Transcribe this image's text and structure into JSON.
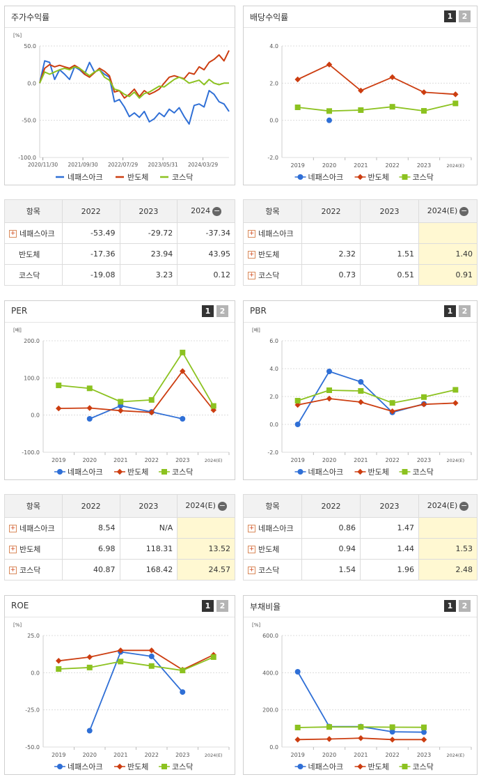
{
  "colors": {
    "nepes": "#2f6fd6",
    "semi": "#cc3d10",
    "kosdaq": "#8cc220"
  },
  "buttons": {
    "b1": "1",
    "b2": "2"
  },
  "legend": [
    "네패스아크",
    "반도체",
    "코스닥"
  ],
  "charts": {
    "stock": {
      "title": "주가수익률",
      "unit": "[%]",
      "type": "line",
      "ylim": [
        -100,
        50
      ],
      "yticks": [
        "50.0",
        "0.0",
        "-50.0",
        "-100.0"
      ],
      "xticks": [
        "2020/11/30",
        "2021/09/30",
        "2022/07/29",
        "2023/05/31",
        "2024/03/29"
      ],
      "series": [
        {
          "name": "네패스아크",
          "values": [
            0,
            30,
            28,
            5,
            18,
            12,
            5,
            22,
            18,
            12,
            28,
            15,
            18,
            12,
            8,
            -25,
            -22,
            -32,
            -45,
            -40,
            -46,
            -38,
            -52,
            -48,
            -40,
            -45,
            -35,
            -40,
            -33,
            -45,
            -55,
            -30,
            -28,
            -32,
            -10,
            -15,
            -25,
            -28,
            -38
          ]
        },
        {
          "name": "반도체",
          "values": [
            0,
            20,
            25,
            22,
            24,
            22,
            20,
            24,
            20,
            12,
            8,
            14,
            20,
            16,
            10,
            -12,
            -10,
            -20,
            -15,
            -8,
            -18,
            -10,
            -15,
            -12,
            -8,
            0,
            8,
            10,
            8,
            6,
            14,
            12,
            22,
            18,
            28,
            32,
            38,
            30,
            44
          ]
        },
        {
          "name": "코스닥",
          "values": [
            0,
            15,
            12,
            15,
            18,
            20,
            18,
            22,
            20,
            15,
            10,
            15,
            18,
            8,
            4,
            -8,
            -10,
            -15,
            -18,
            -12,
            -20,
            -14,
            -12,
            -8,
            -4,
            -5,
            0,
            5,
            8,
            5,
            0,
            2,
            4,
            -2,
            5,
            0,
            -2,
            0,
            0
          ]
        }
      ]
    },
    "dividend": {
      "title": "배당수익률",
      "type": "line",
      "ylim": [
        -2,
        4
      ],
      "yticks": [
        "4.0",
        "2.0",
        "0.0",
        "-2.0"
      ],
      "categories": [
        "2019",
        "2020",
        "2021",
        "2022",
        "2023",
        "2024(E)"
      ],
      "series": [
        {
          "name": "네패스아크",
          "values": [
            null,
            0.0,
            null,
            null,
            null,
            null
          ]
        },
        {
          "name": "반도체",
          "values": [
            2.2,
            3.0,
            1.6,
            2.32,
            1.51,
            1.4
          ]
        },
        {
          "name": "코스닥",
          "values": [
            0.7,
            0.5,
            0.55,
            0.73,
            0.51,
            0.91
          ]
        }
      ]
    },
    "per": {
      "title": "PER",
      "unit": "[배]",
      "type": "line",
      "ylim": [
        -100,
        200
      ],
      "yticks": [
        "200.0",
        "100.0",
        "0.0",
        "-100.0"
      ],
      "categories": [
        "2019",
        "2020",
        "2021",
        "2022",
        "2023",
        "2024(E)"
      ],
      "series": [
        {
          "name": "네패스아크",
          "values": [
            null,
            -10,
            25,
            8.54,
            -10,
            null
          ]
        },
        {
          "name": "반도체",
          "values": [
            18,
            19,
            12,
            6.98,
            118.31,
            13.52
          ]
        },
        {
          "name": "코스닥",
          "values": [
            80,
            72,
            36,
            40.87,
            168.42,
            24.57
          ]
        }
      ]
    },
    "pbr": {
      "title": "PBR",
      "unit": "[배]",
      "type": "line",
      "ylim": [
        -2,
        6
      ],
      "yticks": [
        "6.0",
        "4.0",
        "2.0",
        "0.0",
        "-2.0"
      ],
      "categories": [
        "2019",
        "2020",
        "2021",
        "2022",
        "2023",
        "2024(E)"
      ],
      "series": [
        {
          "name": "네패스아크",
          "values": [
            0.0,
            3.8,
            3.05,
            0.86,
            1.47,
            null
          ]
        },
        {
          "name": "반도체",
          "values": [
            1.4,
            1.85,
            1.6,
            0.94,
            1.44,
            1.53
          ]
        },
        {
          "name": "코스닥",
          "values": [
            1.7,
            2.45,
            2.4,
            1.54,
            1.96,
            2.48
          ]
        }
      ]
    },
    "roe": {
      "title": "ROE",
      "unit": "[%]",
      "type": "line",
      "ylim": [
        -50,
        25
      ],
      "yticks": [
        "25.0",
        "0.0",
        "-25.0",
        "-50.0"
      ],
      "categories": [
        "2019",
        "2020",
        "2021",
        "2022",
        "2023",
        "2024(E)"
      ],
      "series": [
        {
          "name": "네패스아크",
          "values": [
            null,
            -39,
            14,
            11,
            -13,
            null
          ]
        },
        {
          "name": "반도체",
          "values": [
            8,
            10.5,
            15,
            15,
            2,
            12
          ]
        },
        {
          "name": "코스닥",
          "values": [
            2.5,
            3.5,
            7.5,
            4.5,
            1.5,
            10.5
          ]
        }
      ]
    },
    "debt": {
      "title": "부채비율",
      "unit": "[%]",
      "type": "line",
      "ylim": [
        0,
        600
      ],
      "yticks": [
        "600.0",
        "400.0",
        "200.0",
        "0.0"
      ],
      "categories": [
        "2019",
        "2020",
        "2021",
        "2022",
        "2023",
        "2024(E)"
      ],
      "series": [
        {
          "name": "네패스아크",
          "values": [
            405,
            110,
            110,
            82,
            80,
            null
          ]
        },
        {
          "name": "반도체",
          "values": [
            40,
            43,
            48,
            40,
            40,
            null
          ]
        },
        {
          "name": "코스닥",
          "values": [
            105,
            108,
            108,
            107,
            106,
            null
          ]
        }
      ]
    }
  },
  "tables": {
    "stock": {
      "headers": [
        "항목",
        "2022",
        "2023",
        "2024"
      ],
      "rows": [
        {
          "label": "네패스아크",
          "plus": true,
          "cells": [
            "-53.49",
            "-29.72",
            "-37.34"
          ]
        },
        {
          "label": "반도체",
          "plus": false,
          "cells": [
            "-17.36",
            "23.94",
            "43.95"
          ]
        },
        {
          "label": "코스닥",
          "plus": false,
          "cells": [
            "-19.08",
            "3.23",
            "0.12"
          ]
        }
      ]
    },
    "dividend": {
      "headers": [
        "항목",
        "2022",
        "2023",
        "2024(E)"
      ],
      "rows": [
        {
          "label": "네패스아크",
          "plus": true,
          "cells": [
            "",
            "",
            ""
          ]
        },
        {
          "label": "반도체",
          "plus": true,
          "cells": [
            "2.32",
            "1.51",
            "1.40"
          ]
        },
        {
          "label": "코스닥",
          "plus": true,
          "cells": [
            "0.73",
            "0.51",
            "0.91"
          ]
        }
      ]
    },
    "per": {
      "headers": [
        "항목",
        "2022",
        "2023",
        "2024(E)"
      ],
      "rows": [
        {
          "label": "네패스아크",
          "plus": true,
          "cells": [
            "8.54",
            "N/A",
            ""
          ]
        },
        {
          "label": "반도체",
          "plus": true,
          "cells": [
            "6.98",
            "118.31",
            "13.52"
          ]
        },
        {
          "label": "코스닥",
          "plus": true,
          "cells": [
            "40.87",
            "168.42",
            "24.57"
          ]
        }
      ]
    },
    "pbr": {
      "headers": [
        "항목",
        "2022",
        "2023",
        "2024(E)"
      ],
      "rows": [
        {
          "label": "네패스아크",
          "plus": true,
          "cells": [
            "0.86",
            "1.47",
            ""
          ]
        },
        {
          "label": "반도체",
          "plus": true,
          "cells": [
            "0.94",
            "1.44",
            "1.53"
          ]
        },
        {
          "label": "코스닥",
          "plus": true,
          "cells": [
            "1.54",
            "1.96",
            "2.48"
          ]
        }
      ]
    }
  },
  "chart_data": [
    {
      "type": "line",
      "title": "주가수익률",
      "ylabel": "[%]",
      "ylim": [
        -100,
        50
      ],
      "x": [
        "2020/11/30",
        "2021/09/30",
        "2022/07/29",
        "2023/05/31",
        "2024/03/29"
      ],
      "table": {
        "categories": [
          "2022",
          "2023",
          "2024"
        ],
        "series": [
          {
            "name": "네패스아크",
            "values": [
              -53.49,
              -29.72,
              -37.34
            ]
          },
          {
            "name": "반도체",
            "values": [
              -17.36,
              23.94,
              43.95
            ]
          },
          {
            "name": "코스닥",
            "values": [
              -19.08,
              3.23,
              0.12
            ]
          }
        ]
      }
    },
    {
      "type": "line",
      "title": "배당수익률",
      "ylim": [
        -2,
        4
      ],
      "categories": [
        "2019",
        "2020",
        "2021",
        "2022",
        "2023",
        "2024(E)"
      ],
      "series": [
        {
          "name": "네패스아크",
          "values": [
            null,
            0.0,
            null,
            null,
            null,
            null
          ]
        },
        {
          "name": "반도체",
          "values": [
            2.2,
            3.0,
            1.6,
            2.32,
            1.51,
            1.4
          ]
        },
        {
          "name": "코스닥",
          "values": [
            0.7,
            0.5,
            0.55,
            0.73,
            0.51,
            0.91
          ]
        }
      ]
    },
    {
      "type": "line",
      "title": "PER",
      "ylabel": "[배]",
      "ylim": [
        -100,
        200
      ],
      "categories": [
        "2019",
        "2020",
        "2021",
        "2022",
        "2023",
        "2024(E)"
      ],
      "series": [
        {
          "name": "네패스아크",
          "values": [
            null,
            -10,
            25,
            8.54,
            -10,
            null
          ]
        },
        {
          "name": "반도체",
          "values": [
            18,
            19,
            12,
            6.98,
            118.31,
            13.52
          ]
        },
        {
          "name": "코스닥",
          "values": [
            80,
            72,
            36,
            40.87,
            168.42,
            24.57
          ]
        }
      ]
    },
    {
      "type": "line",
      "title": "PBR",
      "ylabel": "[배]",
      "ylim": [
        -2,
        6
      ],
      "categories": [
        "2019",
        "2020",
        "2021",
        "2022",
        "2023",
        "2024(E)"
      ],
      "series": [
        {
          "name": "네패스아크",
          "values": [
            0.0,
            3.8,
            3.05,
            0.86,
            1.47,
            null
          ]
        },
        {
          "name": "반도체",
          "values": [
            1.4,
            1.85,
            1.6,
            0.94,
            1.44,
            1.53
          ]
        },
        {
          "name": "코스닥",
          "values": [
            1.7,
            2.45,
            2.4,
            1.54,
            1.96,
            2.48
          ]
        }
      ]
    },
    {
      "type": "line",
      "title": "ROE",
      "ylabel": "[%]",
      "ylim": [
        -50,
        25
      ],
      "categories": [
        "2019",
        "2020",
        "2021",
        "2022",
        "2023",
        "2024(E)"
      ],
      "series": [
        {
          "name": "네패스아크",
          "values": [
            null,
            -39,
            14,
            11,
            -13,
            null
          ]
        },
        {
          "name": "반도체",
          "values": [
            8,
            10.5,
            15,
            15,
            2,
            12
          ]
        },
        {
          "name": "코스닥",
          "values": [
            2.5,
            3.5,
            7.5,
            4.5,
            1.5,
            10.5
          ]
        }
      ]
    },
    {
      "type": "line",
      "title": "부채비율",
      "ylabel": "[%]",
      "ylim": [
        0,
        600
      ],
      "categories": [
        "2019",
        "2020",
        "2021",
        "2022",
        "2023",
        "2024(E)"
      ],
      "series": [
        {
          "name": "네패스아크",
          "values": [
            405,
            110,
            110,
            82,
            80,
            null
          ]
        },
        {
          "name": "반도체",
          "values": [
            40,
            43,
            48,
            40,
            40,
            null
          ]
        },
        {
          "name": "코스닥",
          "values": [
            105,
            108,
            108,
            107,
            106,
            null
          ]
        }
      ]
    }
  ]
}
